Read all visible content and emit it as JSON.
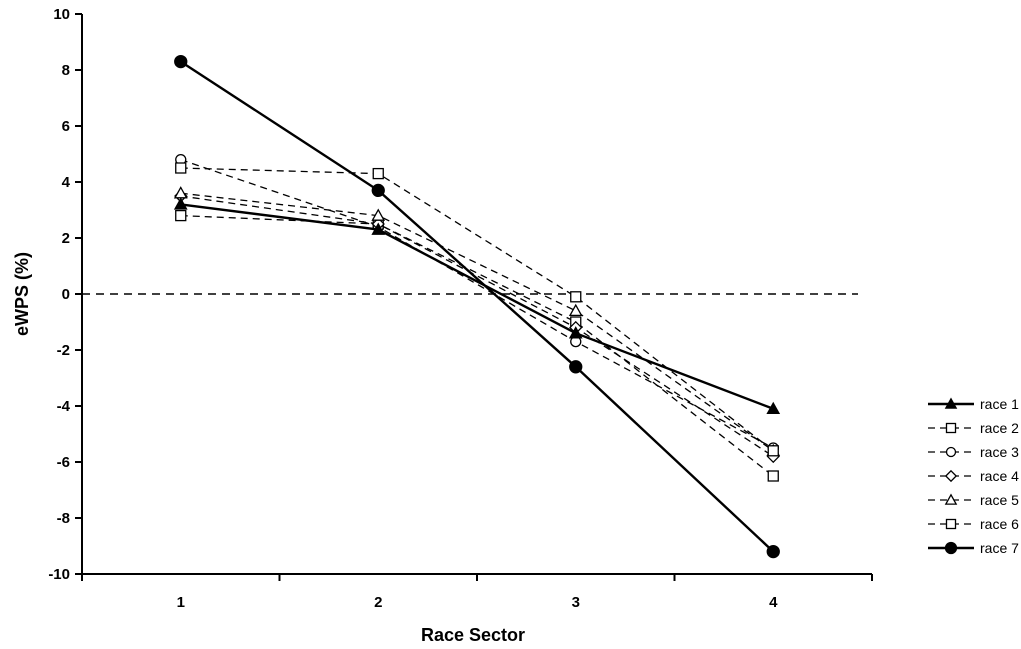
{
  "chart_data": {
    "type": "line",
    "title": "",
    "xlabel": "Race Sector",
    "ylabel": "eWPS (%)",
    "x": [
      1,
      2,
      3,
      4
    ],
    "xlim": [
      0.5,
      4.5
    ],
    "ylim": [
      -10,
      10
    ],
    "yticks": [
      -10,
      -8,
      -6,
      -4,
      -2,
      0,
      2,
      4,
      6,
      8,
      10
    ],
    "xticks": [
      1,
      2,
      3,
      4
    ],
    "reference_line": {
      "y": 0,
      "style": "dashed"
    },
    "legend_position": "right",
    "series": [
      {
        "name": "race 1",
        "values": [
          3.2,
          2.3,
          -1.4,
          -4.1
        ],
        "marker": "triangle",
        "filled": true,
        "line": "solid"
      },
      {
        "name": "race 2",
        "values": [
          2.8,
          2.5,
          -1.0,
          -6.5
        ],
        "marker": "square",
        "filled": false,
        "line": "dashed"
      },
      {
        "name": "race 3",
        "values": [
          4.8,
          2.4,
          -1.7,
          -5.5
        ],
        "marker": "circle",
        "filled": false,
        "line": "dashed"
      },
      {
        "name": "race 4",
        "values": [
          3.5,
          2.5,
          -1.2,
          -5.8
        ],
        "marker": "diamond",
        "filled": false,
        "line": "dashed"
      },
      {
        "name": "race 5",
        "values": [
          3.6,
          2.8,
          -0.6,
          -5.6
        ],
        "marker": "triangle",
        "filled": false,
        "line": "dashed"
      },
      {
        "name": "race 6",
        "values": [
          4.5,
          4.3,
          -0.1,
          -5.6
        ],
        "marker": "square",
        "filled": false,
        "line": "dashed"
      },
      {
        "name": "race 7",
        "values": [
          8.3,
          3.7,
          -2.6,
          -9.2
        ],
        "marker": "circle",
        "filled": true,
        "line": "solid"
      }
    ]
  }
}
